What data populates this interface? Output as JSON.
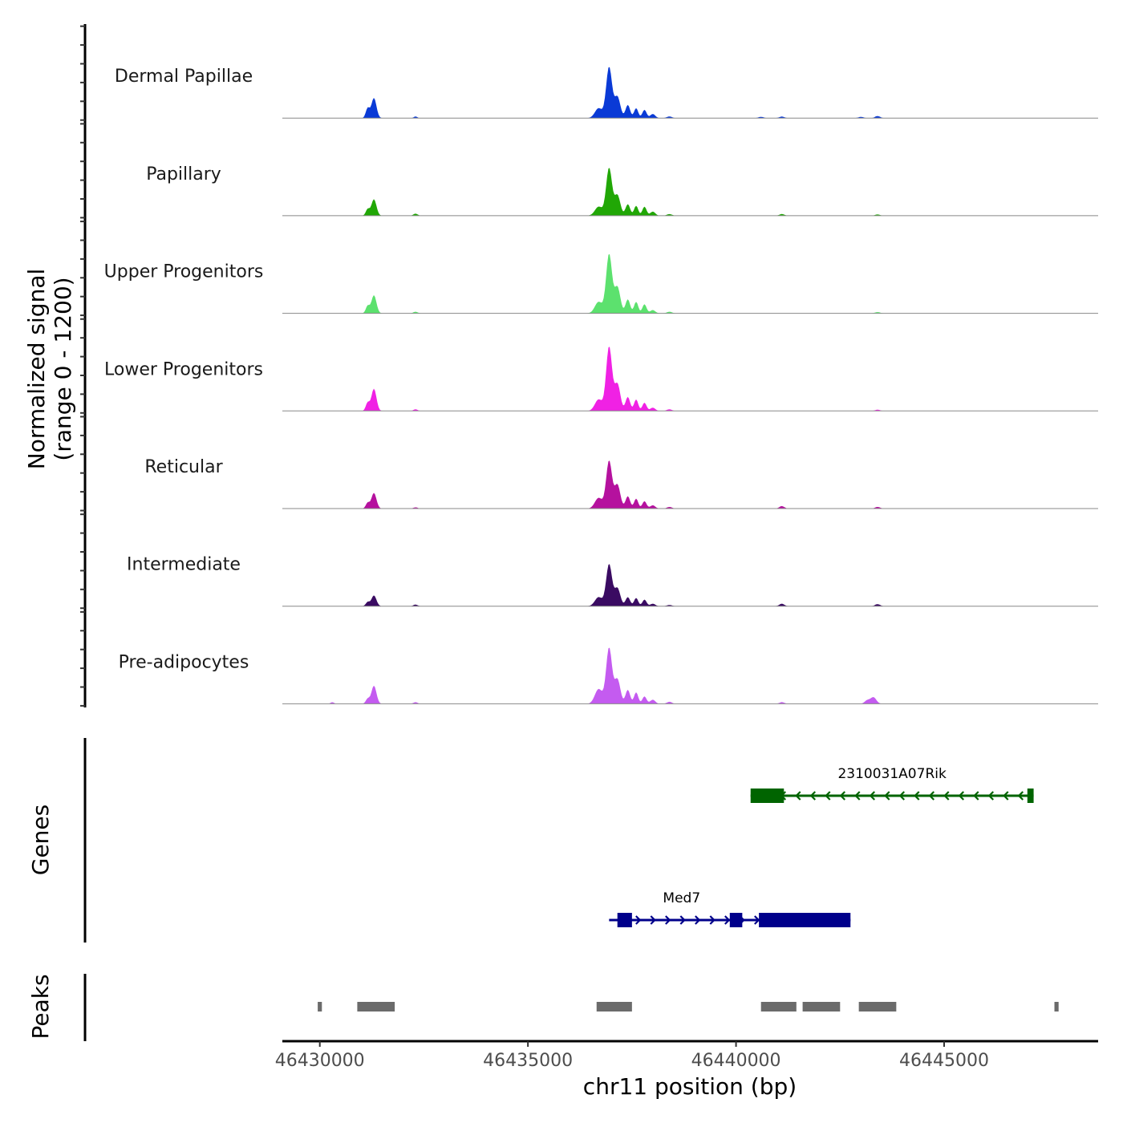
{
  "chart_data": {
    "type": "area",
    "title": "",
    "xlabel": "chr11 position (bp)",
    "ylabel": "Normalized signal",
    "ylabel_range": "(range 0 - 1200)",
    "xlim": [
      46429100,
      46448700
    ],
    "ylim": [
      0,
      1200
    ],
    "x_ticks": [
      46430000,
      46435000,
      46440000,
      46445000
    ],
    "x_tick_labels": [
      "46430000",
      "46435000",
      "46440000",
      "46445000"
    ],
    "tracks": [
      {
        "name": "Dermal Papillae",
        "color": "#0a3ad6",
        "peaks": [
          [
            46431300,
            245,
            60
          ],
          [
            46431150,
            120,
            45
          ],
          [
            46432300,
            20,
            40
          ],
          [
            46436950,
            620,
            70
          ],
          [
            46436700,
            120,
            90
          ],
          [
            46437150,
            260,
            70
          ],
          [
            46437400,
            160,
            55
          ],
          [
            46437600,
            120,
            50
          ],
          [
            46437800,
            100,
            50
          ],
          [
            46438000,
            50,
            60
          ],
          [
            46438400,
            20,
            60
          ],
          [
            46440600,
            15,
            60
          ],
          [
            46441100,
            18,
            60
          ],
          [
            46443000,
            15,
            60
          ],
          [
            46443400,
            25,
            60
          ]
        ]
      },
      {
        "name": "Papillary",
        "color": "#21a706",
        "peaks": [
          [
            46431300,
            200,
            60
          ],
          [
            46431150,
            80,
            45
          ],
          [
            46432300,
            25,
            50
          ],
          [
            46436950,
            580,
            70
          ],
          [
            46436700,
            110,
            90
          ],
          [
            46437150,
            250,
            70
          ],
          [
            46437400,
            140,
            55
          ],
          [
            46437600,
            120,
            50
          ],
          [
            46437800,
            110,
            50
          ],
          [
            46438000,
            50,
            60
          ],
          [
            46438400,
            20,
            60
          ],
          [
            46441100,
            20,
            60
          ],
          [
            46443400,
            15,
            60
          ]
        ]
      },
      {
        "name": "Upper Progenitors",
        "color": "#5ce16e",
        "peaks": [
          [
            46431300,
            220,
            60
          ],
          [
            46431150,
            90,
            45
          ],
          [
            46432300,
            20,
            50
          ],
          [
            46436950,
            720,
            70
          ],
          [
            46436700,
            140,
            90
          ],
          [
            46437150,
            320,
            70
          ],
          [
            46437400,
            170,
            55
          ],
          [
            46437600,
            140,
            50
          ],
          [
            46437800,
            110,
            50
          ],
          [
            46438000,
            40,
            60
          ],
          [
            46438400,
            20,
            60
          ],
          [
            46443400,
            15,
            60
          ]
        ]
      },
      {
        "name": "Lower Progenitors",
        "color": "#f021e4",
        "peaks": [
          [
            46431300,
            270,
            60
          ],
          [
            46431150,
            100,
            45
          ],
          [
            46432300,
            20,
            50
          ],
          [
            46436950,
            780,
            70
          ],
          [
            46436700,
            140,
            90
          ],
          [
            46437150,
            330,
            70
          ],
          [
            46437400,
            170,
            55
          ],
          [
            46437600,
            140,
            50
          ],
          [
            46437800,
            100,
            50
          ],
          [
            46438000,
            40,
            60
          ],
          [
            46438400,
            20,
            60
          ],
          [
            46443400,
            15,
            60
          ]
        ]
      },
      {
        "name": "Reticular",
        "color": "#b5119e",
        "peaks": [
          [
            46431300,
            190,
            60
          ],
          [
            46431150,
            70,
            45
          ],
          [
            46432300,
            15,
            50
          ],
          [
            46436950,
            580,
            70
          ],
          [
            46436700,
            130,
            90
          ],
          [
            46437150,
            290,
            70
          ],
          [
            46437400,
            150,
            55
          ],
          [
            46437600,
            120,
            50
          ],
          [
            46437800,
            90,
            50
          ],
          [
            46438000,
            40,
            60
          ],
          [
            46438400,
            20,
            60
          ],
          [
            46441100,
            30,
            60
          ],
          [
            46443400,
            20,
            60
          ]
        ]
      },
      {
        "name": "Intermediate",
        "color": "#3a0b62",
        "peaks": [
          [
            46431300,
            130,
            60
          ],
          [
            46431150,
            50,
            45
          ],
          [
            46432300,
            20,
            50
          ],
          [
            46436950,
            510,
            70
          ],
          [
            46436700,
            110,
            90
          ],
          [
            46437150,
            220,
            70
          ],
          [
            46437400,
            110,
            55
          ],
          [
            46437600,
            100,
            50
          ],
          [
            46437800,
            80,
            50
          ],
          [
            46438000,
            30,
            60
          ],
          [
            46438400,
            15,
            60
          ],
          [
            46441100,
            30,
            60
          ],
          [
            46443400,
            25,
            60
          ]
        ]
      },
      {
        "name": "Pre-adipocytes",
        "color": "#c45bf0",
        "peaks": [
          [
            46431300,
            220,
            60
          ],
          [
            46431150,
            60,
            45
          ],
          [
            46430300,
            20,
            40
          ],
          [
            46432300,
            20,
            50
          ],
          [
            46436950,
            680,
            70
          ],
          [
            46436700,
            180,
            90
          ],
          [
            46437150,
            300,
            70
          ],
          [
            46437400,
            170,
            55
          ],
          [
            46437600,
            140,
            50
          ],
          [
            46437800,
            90,
            50
          ],
          [
            46438000,
            50,
            60
          ],
          [
            46438400,
            25,
            60
          ],
          [
            46443300,
            80,
            70
          ],
          [
            46443150,
            40,
            60
          ],
          [
            46441100,
            20,
            60
          ]
        ]
      }
    ],
    "genes_title": "Genes",
    "genes": [
      {
        "name": "2310031A07Rik",
        "strand": "-",
        "color": "#006400",
        "start": 46440350,
        "end": 46447150,
        "exons": [
          [
            46440350,
            46441150,
            "thick"
          ],
          [
            46447000,
            46447150,
            "thick"
          ]
        ]
      },
      {
        "name": "Med7",
        "strand": "+",
        "color": "#00008b",
        "start": 46436950,
        "end": 46442750,
        "exons": [
          [
            46437150,
            46437500,
            "thick"
          ],
          [
            46439850,
            46440150,
            "thick"
          ],
          [
            46440550,
            46442750,
            "thick"
          ]
        ]
      }
    ],
    "peaks_title": "Peaks",
    "peak_regions": [
      [
        46429950,
        46430050
      ],
      [
        46430900,
        46431800
      ],
      [
        46436650,
        46437500
      ],
      [
        46440600,
        46441450
      ],
      [
        46441600,
        46442500
      ],
      [
        46442950,
        46443850
      ],
      [
        46447650,
        46447750
      ]
    ]
  }
}
